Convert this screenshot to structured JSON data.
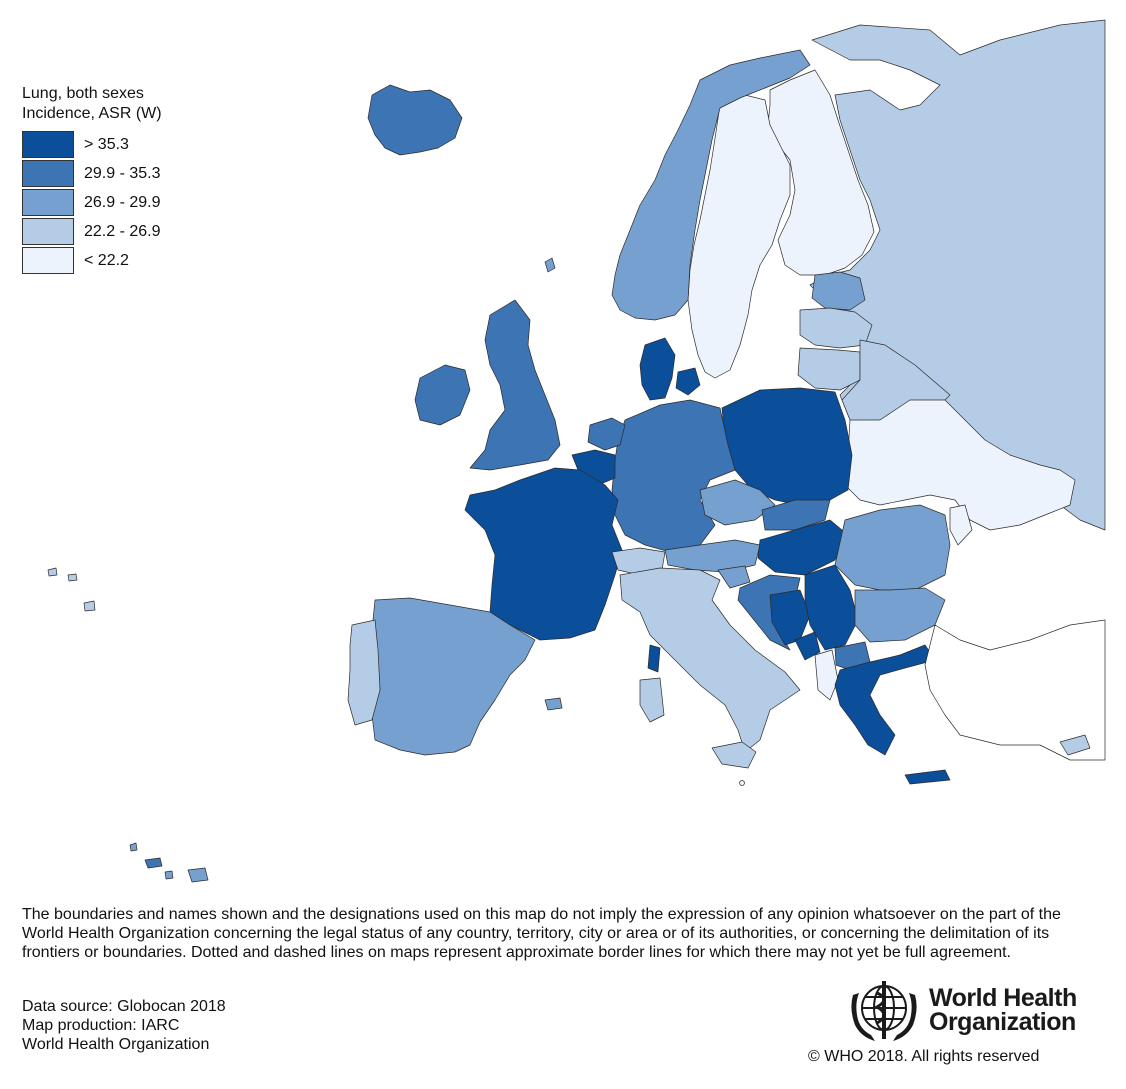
{
  "legend": {
    "title_line1": "Lung, both sexes",
    "title_line2": "Incidence, ASR (W)",
    "items": [
      {
        "label": "> 35.3",
        "color": "#0b4e9a"
      },
      {
        "label": "29.9 - 35.3",
        "color": "#3d74b3"
      },
      {
        "label": "26.9 - 29.9",
        "color": "#76a0cf"
      },
      {
        "label": "22.2 - 26.9",
        "color": "#b5cce6"
      },
      {
        "label": "< 22.2",
        "color": "#edf3fc"
      }
    ]
  },
  "map_colors": {
    "no_data": "#ffffff",
    "border": "#2b2b2b"
  },
  "disclaimer": "The boundaries and names shown and the designations used on this map do not imply the expression of any opinion whatsoever on the part of the World Health Organization concerning the legal status of any country, territory, city or area or of its authorities, or concerning the delimitation of its frontiers or boundaries. Dotted and dashed lines on maps represent approximate border lines for which there may not yet be full agreement.",
  "source": {
    "line1": "Data source: Globocan 2018",
    "line2": "Map production: IARC",
    "line3": "World Health Organization"
  },
  "who": {
    "word1": "World Health",
    "word2": "Organization",
    "copyright": "© WHO 2018. All rights reserved"
  }
}
